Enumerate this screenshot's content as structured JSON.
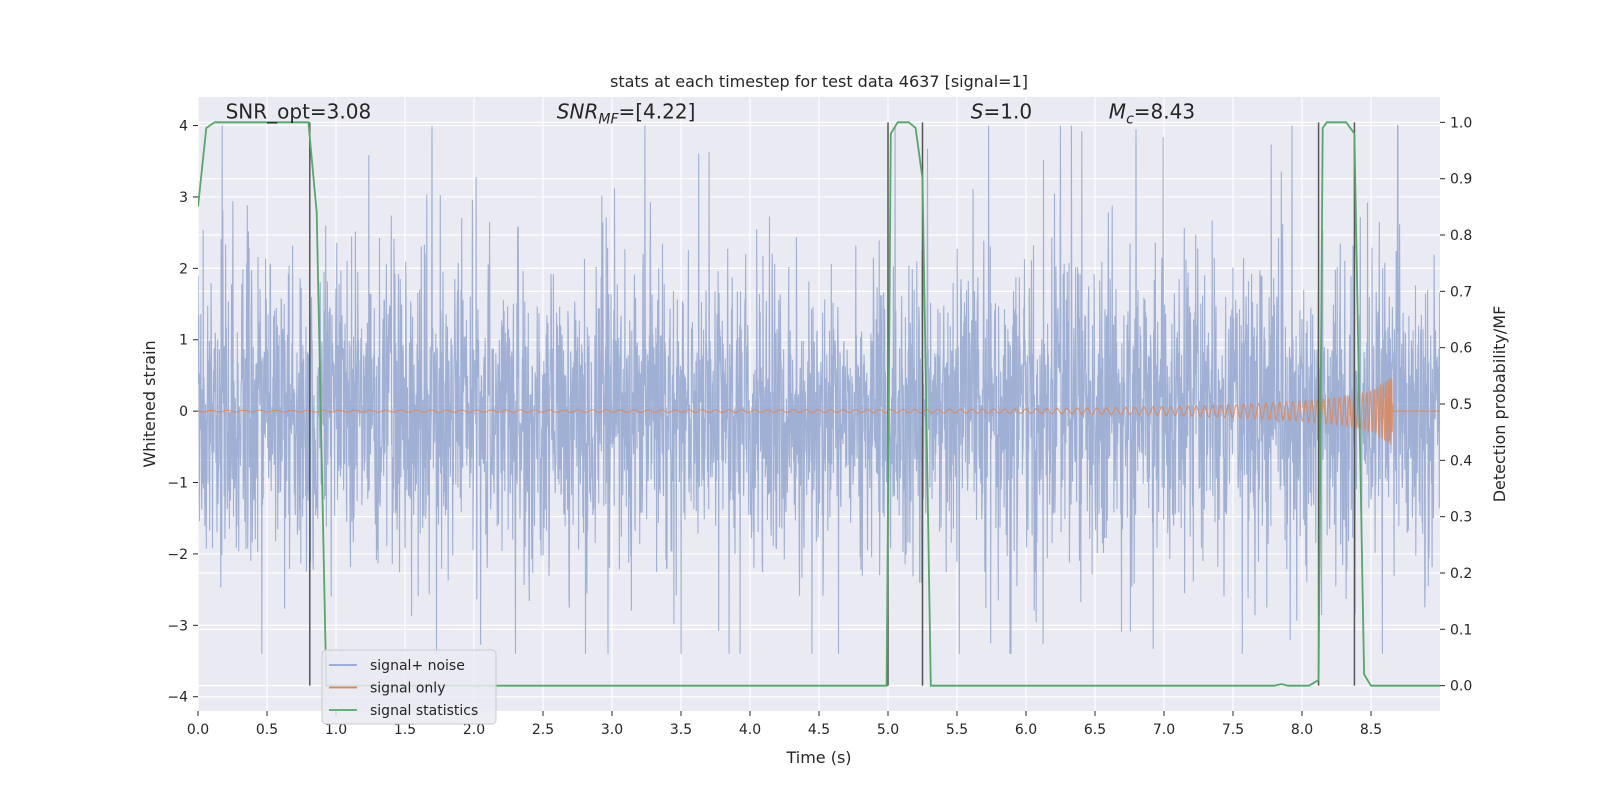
{
  "chart_data": {
    "type": "line",
    "title": "stats at each timestep for test data 4637 [signal=1]",
    "xlabel": "Time (s)",
    "ylabel": "Whitened strain",
    "y2label": "Detection probability/MF",
    "xlim": [
      0.0,
      9.0
    ],
    "ylim": [
      -4.2,
      4.4
    ],
    "y2lim": [
      -0.045,
      1.045
    ],
    "xticks": [
      0.0,
      0.5,
      1.0,
      1.5,
      2.0,
      2.5,
      3.0,
      3.5,
      4.0,
      4.5,
      5.0,
      5.5,
      6.0,
      6.5,
      7.0,
      7.5,
      8.0,
      8.5
    ],
    "xtick_labels": [
      "0.0",
      "0.5",
      "1.0",
      "1.5",
      "2.0",
      "2.5",
      "3.0",
      "3.5",
      "4.0",
      "4.5",
      "5.0",
      "5.5",
      "6.0",
      "6.5",
      "7.0",
      "7.5",
      "8.0",
      "8.5"
    ],
    "yticks": [
      4,
      3,
      2,
      1,
      0,
      -1,
      -2,
      -3,
      -4
    ],
    "ytick_labels": [
      "4",
      "3",
      "2",
      "1",
      "0",
      "−1",
      "−2",
      "−3",
      "−4"
    ],
    "y2ticks": [
      1.0,
      0.9,
      0.8,
      0.7,
      0.6,
      0.5,
      0.4,
      0.3,
      0.2,
      0.1,
      0.0
    ],
    "y2tick_labels": [
      "1.0",
      "0.9",
      "0.8",
      "0.7",
      "0.6",
      "0.5",
      "0.4",
      "0.3",
      "0.2",
      "0.1",
      "0.0"
    ],
    "grid": true,
    "legend_position": "lower-left",
    "annotations": [
      {
        "text": "SNR_opt=3.08",
        "x": 0.2,
        "y": 4.1
      },
      {
        "text": "SNR_MF=[4.22]",
        "x": 2.6,
        "y": 4.1
      },
      {
        "text": "S=1.0",
        "x": 5.6,
        "y": 4.1
      },
      {
        "text": "M_c=8.43",
        "x": 6.6,
        "y": 4.1
      }
    ],
    "vlines": [
      0.81,
      5.0,
      5.25,
      8.12,
      8.38
    ],
    "series": [
      {
        "name": "signal+ noise",
        "color": "#92a6cf",
        "axis": "left",
        "description_values": {
          "t_start": 0.0,
          "t_end": 9.0,
          "typical_amplitude": 1.7,
          "peak_max": 4.0,
          "peak_min": -3.4
        }
      },
      {
        "name": "signal only",
        "color": "#dd8452",
        "axis": "left",
        "envelope": {
          "t": [
            0.0,
            5.0,
            6.0,
            7.0,
            7.5,
            8.0,
            8.3,
            8.5,
            8.65,
            8.66,
            9.0
          ],
          "amp": [
            0.01,
            0.02,
            0.03,
            0.06,
            0.09,
            0.14,
            0.2,
            0.28,
            0.48,
            0.0,
            0.0
          ]
        }
      },
      {
        "name": "signal statistics",
        "color": "#55a868",
        "axis": "right",
        "x": [
          0.0,
          0.06,
          0.12,
          0.3,
          0.6,
          0.8,
          0.86,
          0.93,
          1.0,
          4.99,
          5.02,
          5.07,
          5.15,
          5.2,
          5.25,
          5.31,
          7.8,
          7.85,
          7.9,
          8.05,
          8.12,
          8.15,
          8.18,
          8.25,
          8.32,
          8.38,
          8.45,
          8.5,
          9.0
        ],
        "y": [
          0.85,
          0.99,
          1.0,
          1.0,
          1.0,
          1.0,
          0.84,
          0.0,
          0.0,
          0.0,
          0.98,
          1.0,
          1.0,
          0.99,
          0.9,
          0.0,
          0.0,
          0.003,
          0.0,
          0.0,
          0.01,
          0.99,
          1.0,
          1.0,
          1.0,
          0.98,
          0.02,
          0.0,
          0.0
        ]
      }
    ]
  }
}
